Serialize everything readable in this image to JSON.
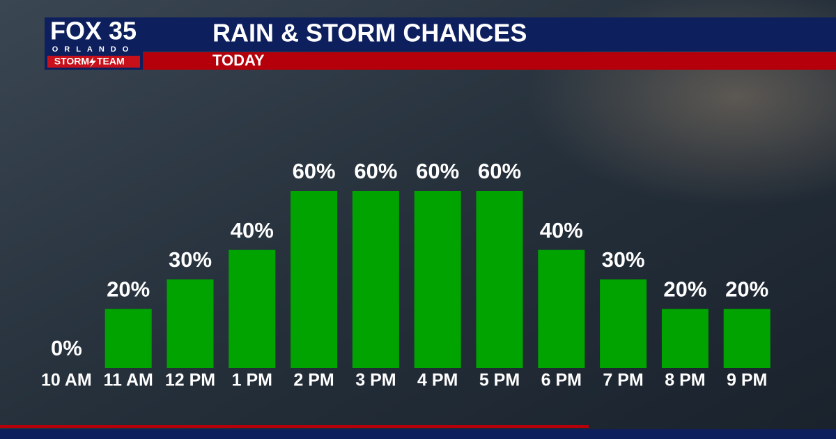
{
  "logo": {
    "name": "FOX 35",
    "city": "ORLANDO",
    "team": [
      "STORM",
      "TEAM"
    ]
  },
  "chart_data": {
    "type": "bar",
    "title": "RAIN & STORM CHANCES",
    "subtitle": "TODAY",
    "categories": [
      "10 AM",
      "11 AM",
      "12 PM",
      "1 PM",
      "2 PM",
      "3 PM",
      "4 PM",
      "5 PM",
      "6 PM",
      "7 PM",
      "8 PM",
      "9 PM"
    ],
    "values": [
      0,
      20,
      30,
      40,
      60,
      60,
      60,
      60,
      40,
      30,
      20,
      20
    ],
    "value_labels": [
      "0%",
      "20%",
      "30%",
      "40%",
      "60%",
      "60%",
      "60%",
      "60%",
      "40%",
      "30%",
      "20%",
      "20%"
    ],
    "color": "#00a300"
  }
}
